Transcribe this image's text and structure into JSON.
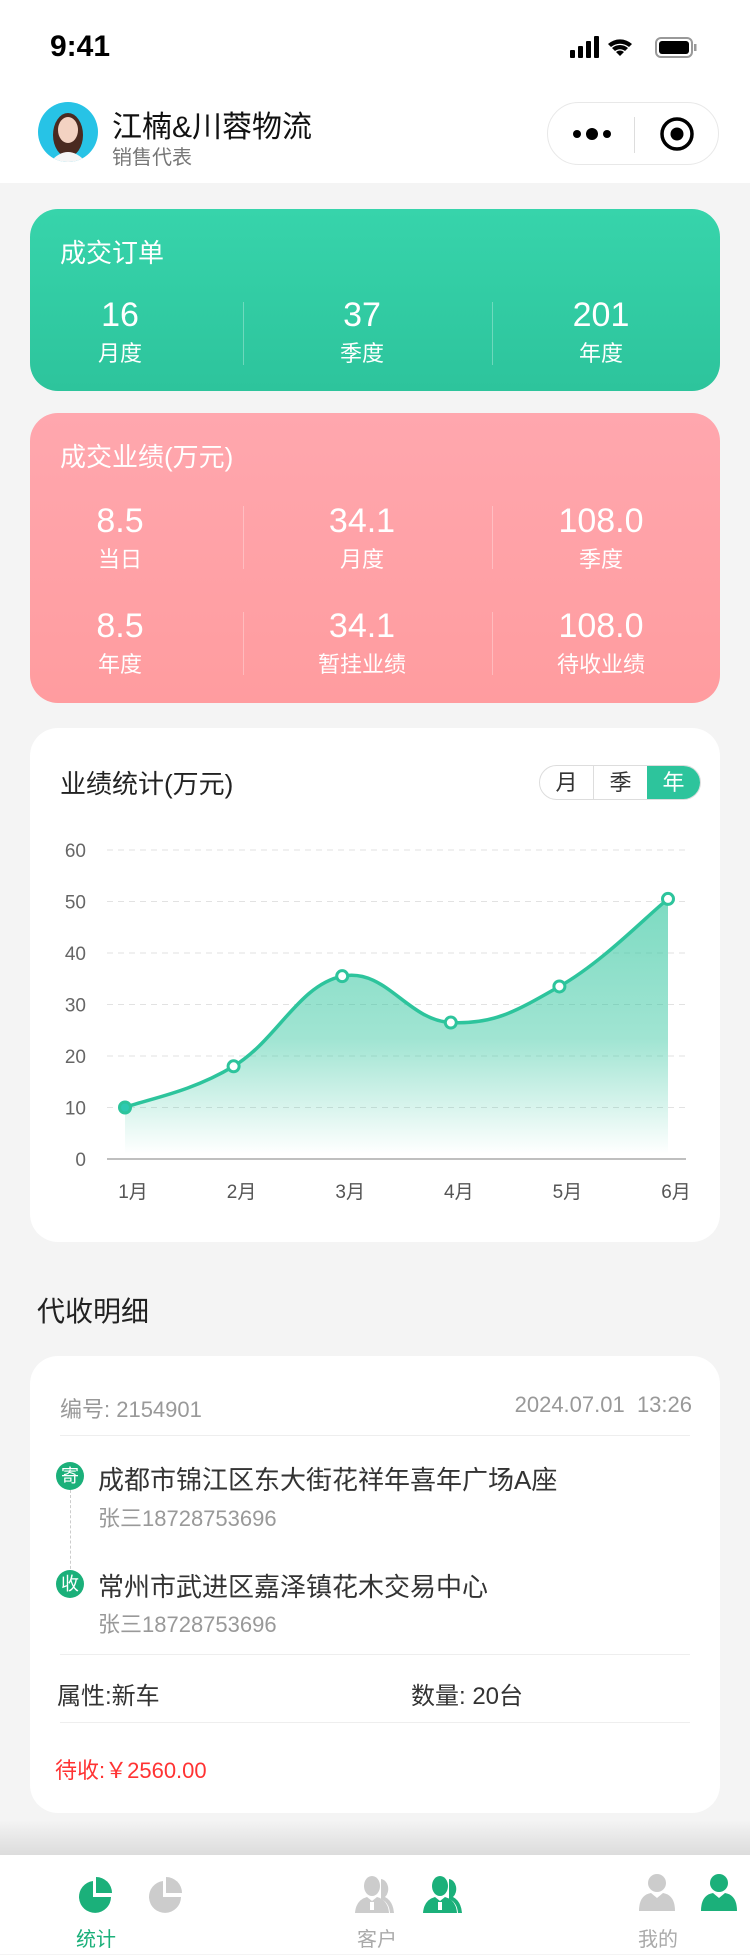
{
  "status_bar": {
    "time": "9:41"
  },
  "header": {
    "name": "江楠&川蓉物流",
    "role": "销售代表",
    "menu_icon": "more-dots-icon",
    "close_icon": "target-icon"
  },
  "orders": {
    "title": "成交订单",
    "color": "#2dc49c",
    "items": [
      {
        "value": "16",
        "label": "月度"
      },
      {
        "value": "37",
        "label": "季度"
      },
      {
        "value": "201",
        "label": "年度"
      }
    ]
  },
  "performance": {
    "title": "成交业绩(万元)",
    "color": "#ffa2a6",
    "items": [
      {
        "value": "8.5",
        "label": "当日"
      },
      {
        "value": "34.1",
        "label": "月度"
      },
      {
        "value": "108.0",
        "label": "季度"
      },
      {
        "value": "8.5",
        "label": "年度"
      },
      {
        "value": "34.1",
        "label": "暂挂业绩"
      },
      {
        "value": "108.0",
        "label": "待收业绩"
      }
    ]
  },
  "stats_card": {
    "title": "业绩统计(万元)",
    "toggle": [
      "月",
      "季",
      "年"
    ],
    "selected": "年"
  },
  "chart_data": {
    "type": "area",
    "categories": [
      "1月",
      "2月",
      "3月",
      "4月",
      "5月",
      "6月"
    ],
    "values": [
      10,
      18,
      35.5,
      26.5,
      33.5,
      50.5
    ],
    "yticks": [
      "0",
      "10",
      "20",
      "30",
      "40",
      "50",
      "60"
    ],
    "ylim": [
      0,
      60
    ],
    "grid": true,
    "smooth": true,
    "color": "#2dc49c"
  },
  "section": {
    "title": "代收明细"
  },
  "detail": {
    "number": "编号: 2154901",
    "datetime": "2024.07.01  13:26",
    "sender": {
      "badge": "寄",
      "address": "成都市锦江区东大街花祥年喜年广场A座",
      "contact": "张三18728753696"
    },
    "receiver": {
      "badge": "收",
      "address": "常州市武进区嘉泽镇花木交易中心",
      "contact": "张三18728753696"
    },
    "attribute": "属性:新车",
    "quantity": "数量: 20台",
    "pending": "待收:￥2560.00",
    "pending_color": "#ff3333"
  },
  "nav": {
    "active": "统计",
    "items": [
      {
        "label": "统计",
        "icon": "pie-chart-icon"
      },
      {
        "label": "客户",
        "icon": "customers-icon"
      },
      {
        "label": "我的",
        "icon": "person-icon"
      }
    ]
  }
}
